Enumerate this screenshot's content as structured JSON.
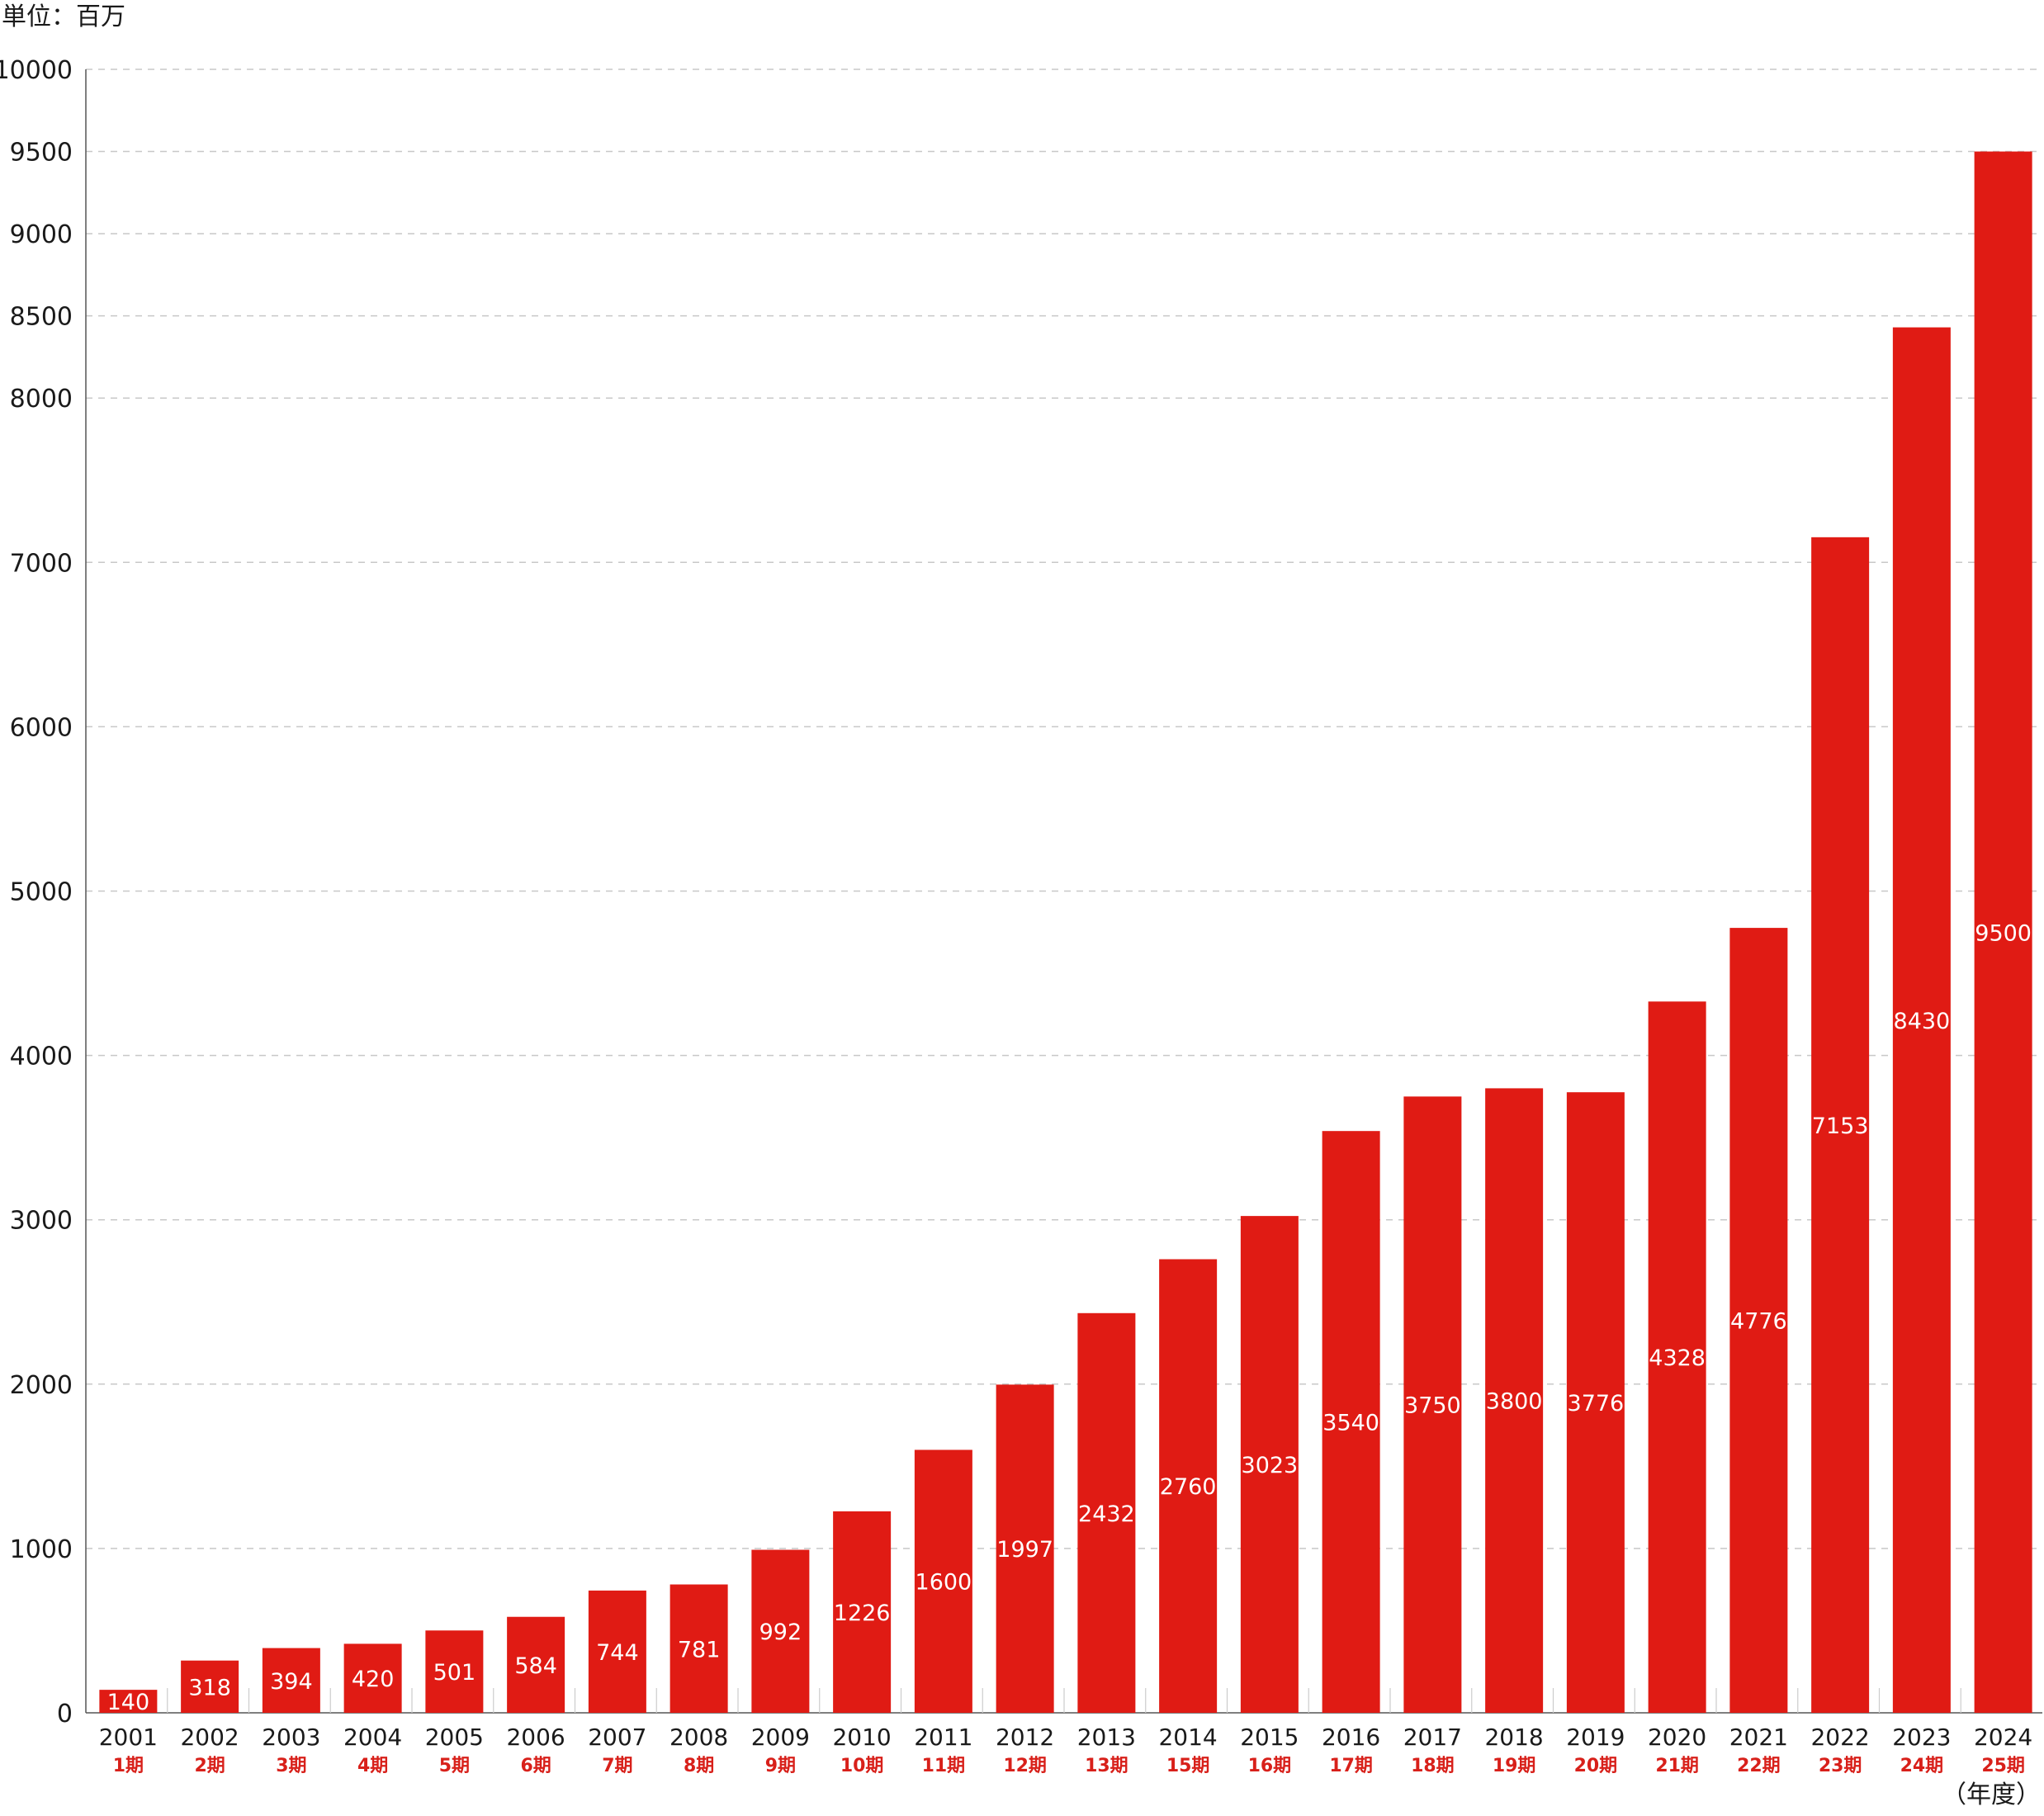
{
  "chart_data": {
    "type": "bar",
    "unit_label": "単位：百万",
    "x_unit_label": "（年度）",
    "categories": [
      "2001",
      "2002",
      "2003",
      "2004",
      "2005",
      "2006",
      "2007",
      "2008",
      "2009",
      "2010",
      "2011",
      "2012",
      "2013",
      "2014",
      "2015",
      "2016",
      "2017",
      "2018",
      "2019",
      "2020",
      "2021",
      "2022",
      "2023",
      "2024"
    ],
    "periods": [
      "1期",
      "2期",
      "3期",
      "4期",
      "5期",
      "6期",
      "7期",
      "8期",
      "9期",
      "10期",
      "11期",
      "12期",
      "13期",
      "15期",
      "16期",
      "17期",
      "18期",
      "19期",
      "20期",
      "21期",
      "22期",
      "23期",
      "24期",
      "25期"
    ],
    "values": [
      140,
      318,
      394,
      420,
      501,
      584,
      744,
      781,
      992,
      1226,
      1600,
      1997,
      2432,
      2760,
      3023,
      3540,
      3750,
      3800,
      3776,
      4328,
      4776,
      7153,
      8430,
      9500
    ],
    "yticks": [
      0,
      1000,
      2000,
      3000,
      4000,
      5000,
      6000,
      7000,
      8000,
      8500,
      9000,
      9500,
      10000
    ],
    "ylim": [
      0,
      10000
    ],
    "grid": true,
    "colors": {
      "bar": "#e01b14",
      "period": "#d8201a",
      "grid": "#c8c8c8",
      "axis": "#555555"
    }
  }
}
